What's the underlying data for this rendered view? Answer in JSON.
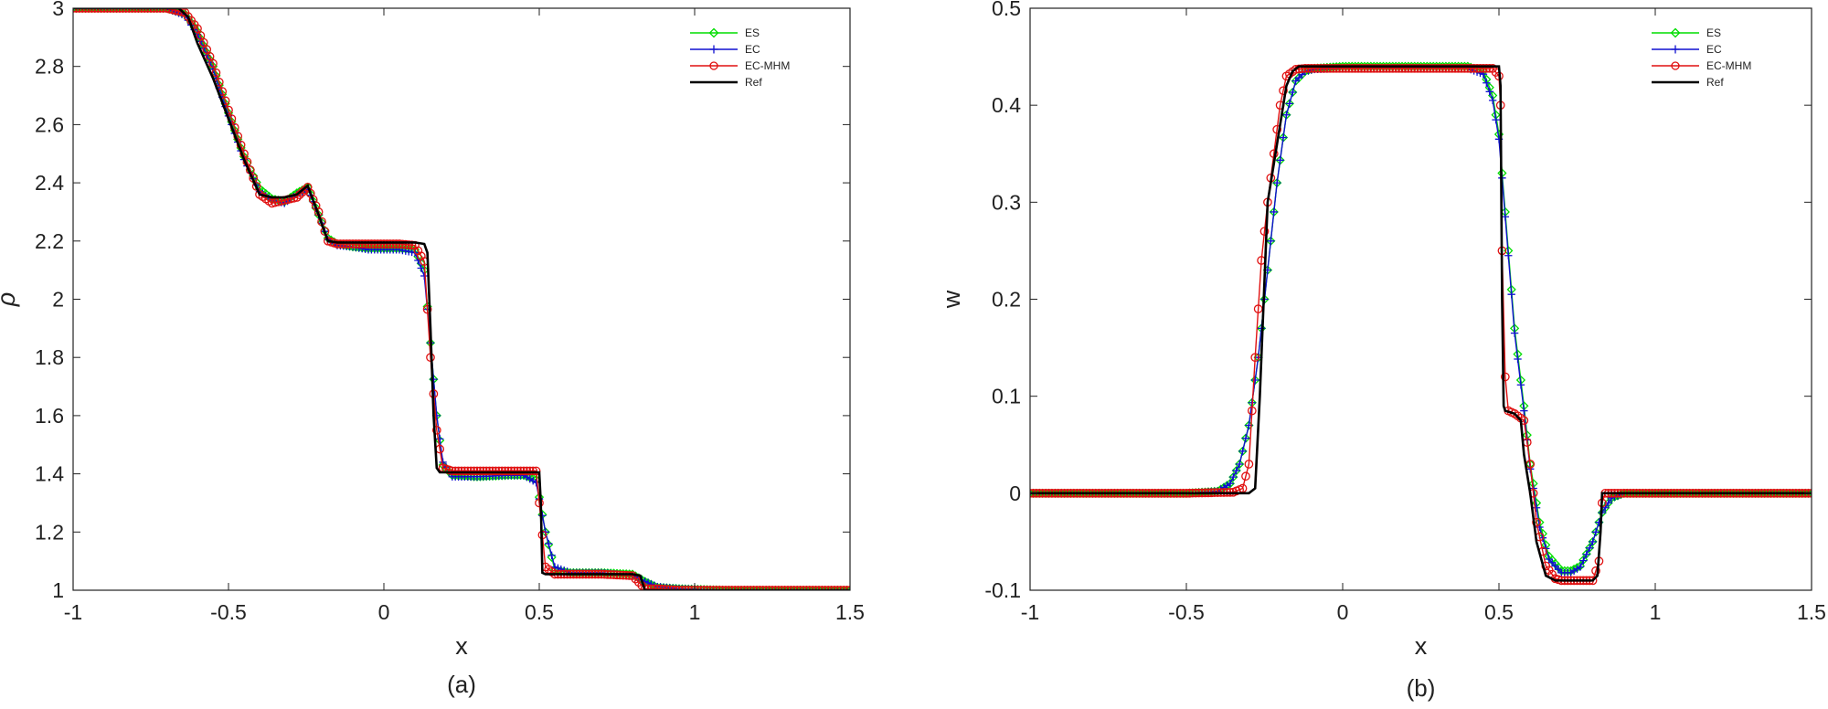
{
  "chart_data": [
    {
      "type": "line",
      "panel_label": "(a)",
      "xlabel": "x",
      "ylabel": "ρ",
      "xlim": [
        -1,
        1.5
      ],
      "ylim": [
        1,
        3
      ],
      "xticks": [
        -1,
        -0.5,
        0,
        0.5,
        1,
        1.5
      ],
      "xtick_labels": [
        "-1",
        "-0.5",
        "0",
        "0.5",
        "1",
        "1.5"
      ],
      "yticks": [
        1,
        1.2,
        1.4,
        1.6,
        1.8,
        2,
        2.2,
        2.4,
        2.6,
        2.8,
        3
      ],
      "ytick_labels": [
        "1",
        "1.2",
        "1.4",
        "1.6",
        "1.8",
        "2",
        "2.2",
        "2.4",
        "2.6",
        "2.8",
        "3"
      ],
      "grid": false,
      "legend_position": "top-right",
      "series": [
        {
          "name": "ES",
          "color": "#00dd00",
          "marker": "diamond",
          "x": [
            -1,
            -0.7,
            -0.64,
            -0.6,
            -0.55,
            -0.5,
            -0.45,
            -0.4,
            -0.36,
            -0.32,
            -0.28,
            -0.245,
            -0.21,
            -0.18,
            -0.15,
            -0.1,
            -0.05,
            0,
            0.05,
            0.1,
            0.13,
            0.15,
            0.17,
            0.19,
            0.22,
            0.3,
            0.4,
            0.45,
            0.49,
            0.52,
            0.55,
            0.6,
            0.7,
            0.8,
            0.84,
            0.88,
            0.95,
            1.1,
            1.5
          ],
          "y": [
            3,
            3,
            2.98,
            2.92,
            2.8,
            2.64,
            2.49,
            2.38,
            2.345,
            2.335,
            2.365,
            2.385,
            2.29,
            2.21,
            2.19,
            2.18,
            2.175,
            2.175,
            2.175,
            2.17,
            2.1,
            1.85,
            1.6,
            1.43,
            1.395,
            1.39,
            1.395,
            1.395,
            1.38,
            1.2,
            1.07,
            1.06,
            1.06,
            1.055,
            1.03,
            1.01,
            1.005,
            1,
            1
          ]
        },
        {
          "name": "EC",
          "color": "#1010d0",
          "marker": "plus",
          "x": [
            -1,
            -0.7,
            -0.64,
            -0.6,
            -0.55,
            -0.5,
            -0.45,
            -0.4,
            -0.36,
            -0.32,
            -0.28,
            -0.245,
            -0.21,
            -0.18,
            -0.15,
            -0.1,
            -0.05,
            0,
            0.05,
            0.1,
            0.13,
            0.15,
            0.17,
            0.19,
            0.22,
            0.3,
            0.4,
            0.45,
            0.49,
            0.52,
            0.55,
            0.6,
            0.7,
            0.8,
            0.84,
            0.88,
            0.95,
            1.1,
            1.5
          ],
          "y": [
            3,
            3,
            2.975,
            2.91,
            2.79,
            2.63,
            2.48,
            2.37,
            2.34,
            2.33,
            2.36,
            2.38,
            2.29,
            2.205,
            2.185,
            2.18,
            2.17,
            2.17,
            2.17,
            2.16,
            2.08,
            1.85,
            1.6,
            1.44,
            1.39,
            1.39,
            1.395,
            1.395,
            1.37,
            1.2,
            1.08,
            1.06,
            1.06,
            1.05,
            1.03,
            1.012,
            1.005,
            1,
            1
          ]
        },
        {
          "name": "EC-MHM",
          "color": "#e01010",
          "marker": "circle",
          "x": [
            -1,
            -0.7,
            -0.64,
            -0.6,
            -0.55,
            -0.5,
            -0.45,
            -0.4,
            -0.36,
            -0.32,
            -0.28,
            -0.245,
            -0.21,
            -0.18,
            -0.15,
            -0.1,
            -0.05,
            0,
            0.05,
            0.1,
            0.13,
            0.15,
            0.17,
            0.19,
            0.22,
            0.3,
            0.4,
            0.45,
            0.49,
            0.52,
            0.55,
            0.6,
            0.7,
            0.8,
            0.84,
            0.88,
            0.95,
            1.1,
            1.5
          ],
          "y": [
            3,
            3,
            2.985,
            2.93,
            2.81,
            2.65,
            2.5,
            2.36,
            2.33,
            2.34,
            2.35,
            2.385,
            2.3,
            2.2,
            2.19,
            2.19,
            2.19,
            2.19,
            2.19,
            2.185,
            2.13,
            1.8,
            1.55,
            1.42,
            1.41,
            1.41,
            1.41,
            1.41,
            1.41,
            1.08,
            1.055,
            1.055,
            1.055,
            1.05,
            1.005,
            1.005,
            1,
            1,
            1
          ]
        },
        {
          "name": "Ref",
          "color": "#000000",
          "marker": "none",
          "x": [
            -1,
            -0.66,
            -0.63,
            -0.6,
            -0.55,
            -0.5,
            -0.45,
            -0.4,
            -0.36,
            -0.32,
            -0.28,
            -0.245,
            -0.21,
            -0.18,
            -0.15,
            -0.1,
            -0.05,
            0,
            0.05,
            0.1,
            0.13,
            0.14,
            0.15,
            0.16,
            0.17,
            0.18,
            0.3,
            0.4,
            0.5,
            0.505,
            0.51,
            0.52,
            0.6,
            0.7,
            0.8,
            0.825,
            0.84,
            0.85,
            1.1,
            1.5
          ],
          "y": [
            3,
            3,
            2.97,
            2.88,
            2.76,
            2.62,
            2.48,
            2.36,
            2.35,
            2.35,
            2.36,
            2.39,
            2.29,
            2.2,
            2.195,
            2.195,
            2.195,
            2.195,
            2.195,
            2.195,
            2.19,
            2.16,
            1.9,
            1.6,
            1.42,
            1.405,
            1.405,
            1.405,
            1.405,
            1.3,
            1.06,
            1.055,
            1.055,
            1.055,
            1.055,
            1.05,
            1,
            1,
            1,
            1
          ]
        }
      ]
    },
    {
      "type": "line",
      "panel_label": "(b)",
      "xlabel": "x",
      "ylabel": "w",
      "xlim": [
        -1,
        1.5
      ],
      "ylim": [
        -0.1,
        0.5
      ],
      "xticks": [
        -1,
        -0.5,
        0,
        0.5,
        1,
        1.5
      ],
      "xtick_labels": [
        "-1",
        "-0.5",
        "0",
        "0.5",
        "1",
        "1.5"
      ],
      "yticks": [
        -0.1,
        0,
        0.1,
        0.2,
        0.3,
        0.4,
        0.5
      ],
      "ytick_labels": [
        "-0.1",
        "0",
        "0.1",
        "0.2",
        "0.3",
        "0.4",
        "0.5"
      ],
      "grid": false,
      "legend_position": "top-right",
      "series": [
        {
          "name": "ES",
          "color": "#00dd00",
          "marker": "diamond",
          "x": [
            -1,
            -0.5,
            -0.4,
            -0.36,
            -0.33,
            -0.3,
            -0.27,
            -0.24,
            -0.21,
            -0.18,
            -0.15,
            -0.12,
            -0.09,
            0,
            0.2,
            0.4,
            0.45,
            0.48,
            0.5,
            0.51,
            0.52,
            0.53,
            0.55,
            0.58,
            0.6,
            0.63,
            0.66,
            0.7,
            0.73,
            0.76,
            0.8,
            0.83,
            0.86,
            0.9,
            1,
            1.5
          ],
          "y": [
            0,
            0,
            0.002,
            0.01,
            0.03,
            0.07,
            0.14,
            0.23,
            0.32,
            0.39,
            0.425,
            0.435,
            0.438,
            0.44,
            0.44,
            0.44,
            0.435,
            0.41,
            0.37,
            0.33,
            0.29,
            0.25,
            0.17,
            0.09,
            0.03,
            -0.03,
            -0.065,
            -0.08,
            -0.08,
            -0.075,
            -0.05,
            -0.02,
            -0.005,
            0,
            0,
            0
          ]
        },
        {
          "name": "EC",
          "color": "#1010d0",
          "marker": "plus",
          "x": [
            -1,
            -0.5,
            -0.4,
            -0.36,
            -0.33,
            -0.3,
            -0.27,
            -0.24,
            -0.21,
            -0.18,
            -0.15,
            -0.12,
            -0.09,
            0,
            0.2,
            0.4,
            0.45,
            0.48,
            0.5,
            0.51,
            0.52,
            0.53,
            0.55,
            0.58,
            0.6,
            0.63,
            0.66,
            0.7,
            0.73,
            0.76,
            0.8,
            0.83,
            0.86,
            0.9,
            1,
            1.5
          ],
          "y": [
            0,
            0,
            0.002,
            0.01,
            0.03,
            0.07,
            0.14,
            0.23,
            0.32,
            0.39,
            0.425,
            0.435,
            0.437,
            0.438,
            0.438,
            0.438,
            0.432,
            0.405,
            0.365,
            0.325,
            0.285,
            0.245,
            0.165,
            0.085,
            0.025,
            -0.035,
            -0.068,
            -0.082,
            -0.082,
            -0.076,
            -0.05,
            -0.02,
            -0.005,
            0,
            0,
            0
          ]
        },
        {
          "name": "EC-MHM",
          "color": "#e01010",
          "marker": "circle",
          "x": [
            -1,
            -0.5,
            -0.35,
            -0.32,
            -0.3,
            -0.28,
            -0.26,
            -0.24,
            -0.22,
            -0.2,
            -0.18,
            -0.15,
            -0.12,
            0,
            0.2,
            0.4,
            0.48,
            0.5,
            0.505,
            0.51,
            0.52,
            0.53,
            0.55,
            0.58,
            0.6,
            0.62,
            0.65,
            0.68,
            0.7,
            0.75,
            0.8,
            0.82,
            0.83,
            0.84,
            0.9,
            1.5
          ],
          "y": [
            0,
            0,
            0.001,
            0.005,
            0.03,
            0.14,
            0.24,
            0.3,
            0.35,
            0.4,
            0.43,
            0.437,
            0.438,
            0.438,
            0.438,
            0.438,
            0.438,
            0.43,
            0.4,
            0.25,
            0.12,
            0.085,
            0.082,
            0.075,
            0.03,
            -0.03,
            -0.075,
            -0.088,
            -0.09,
            -0.09,
            -0.09,
            -0.07,
            -0.01,
            0,
            0,
            0
          ]
        },
        {
          "name": "Ref",
          "color": "#000000",
          "marker": "none",
          "x": [
            -1,
            -0.4,
            -0.3,
            -0.28,
            -0.265,
            -0.25,
            -0.24,
            -0.22,
            -0.2,
            -0.18,
            -0.16,
            -0.14,
            0,
            0.2,
            0.4,
            0.5,
            0.505,
            0.51,
            0.515,
            0.52,
            0.55,
            0.57,
            0.58,
            0.6,
            0.62,
            0.65,
            0.68,
            0.7,
            0.8,
            0.815,
            0.825,
            0.83,
            1.5
          ],
          "y": [
            0,
            0,
            0,
            0.005,
            0.1,
            0.22,
            0.3,
            0.34,
            0.38,
            0.42,
            0.435,
            0.44,
            0.44,
            0.44,
            0.44,
            0.44,
            0.42,
            0.2,
            0.09,
            0.085,
            0.082,
            0.075,
            0.04,
            0,
            -0.05,
            -0.085,
            -0.09,
            -0.09,
            -0.09,
            -0.085,
            -0.04,
            0,
            0
          ]
        }
      ]
    }
  ]
}
